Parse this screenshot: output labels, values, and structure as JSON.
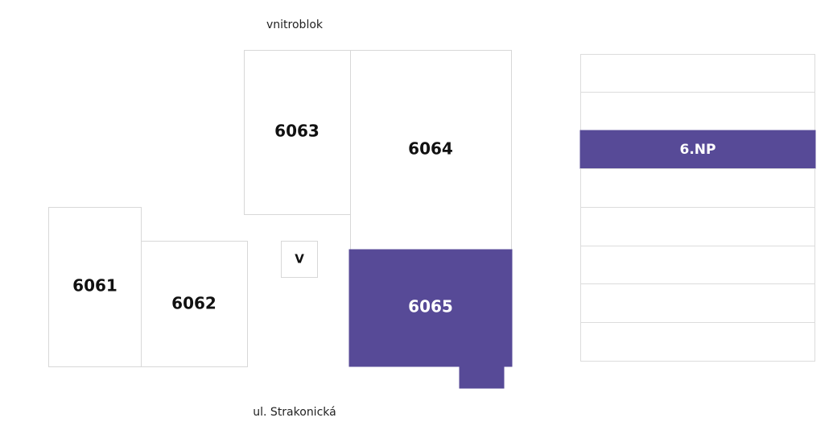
{
  "labels": {
    "top": "vnitroblok",
    "bottom": "ul. Strakonická"
  },
  "units": [
    "6061",
    "6062",
    "6063",
    "6064",
    "6065"
  ],
  "core": "V",
  "floors": {
    "selected": "6.NP"
  }
}
